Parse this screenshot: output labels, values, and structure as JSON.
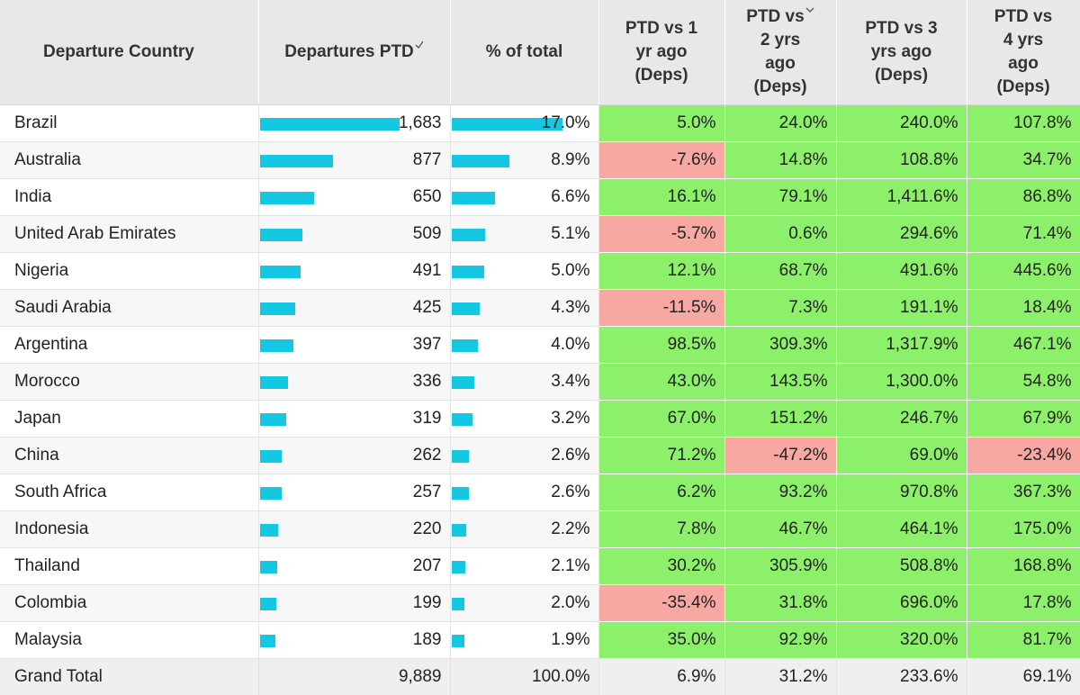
{
  "headers": {
    "country": "Departure Country",
    "departures": "Departures PTD",
    "pct_total": "% of total",
    "vs1": [
      "PTD vs 1",
      "yr ago",
      "(Deps)"
    ],
    "vs2": [
      "PTD vs",
      "2 yrs",
      "ago",
      "(Deps)"
    ],
    "vs3": [
      "PTD vs 3",
      "yrs ago",
      "(Deps)"
    ],
    "vs4": [
      "PTD vs",
      "4 yrs",
      "ago",
      "(Deps)"
    ]
  },
  "colors": {
    "bar": "#13c8e0",
    "positive": "#8df06a",
    "negative": "#f7a8a3",
    "header_bg": "#e8e8e8"
  },
  "icons": {
    "sort": "sort-chevron-icon"
  },
  "max_departures": 1683,
  "max_pct": 17.0,
  "rows": [
    {
      "country": "Brazil",
      "departures": "1,683",
      "dep_num": 1683,
      "pct": "17.0%",
      "pct_num": 17.0,
      "vs1": "5.0%",
      "vs2": "24.0%",
      "vs3": "240.0%",
      "vs4": "107.8%"
    },
    {
      "country": "Australia",
      "departures": "877",
      "dep_num": 877,
      "pct": "8.9%",
      "pct_num": 8.9,
      "vs1": "-7.6%",
      "vs2": "14.8%",
      "vs3": "108.8%",
      "vs4": "34.7%"
    },
    {
      "country": "India",
      "departures": "650",
      "dep_num": 650,
      "pct": "6.6%",
      "pct_num": 6.6,
      "vs1": "16.1%",
      "vs2": "79.1%",
      "vs3": "1,411.6%",
      "vs4": "86.8%"
    },
    {
      "country": "United Arab Emirates",
      "departures": "509",
      "dep_num": 509,
      "pct": "5.1%",
      "pct_num": 5.1,
      "vs1": "-5.7%",
      "vs2": "0.6%",
      "vs3": "294.6%",
      "vs4": "71.4%"
    },
    {
      "country": "Nigeria",
      "departures": "491",
      "dep_num": 491,
      "pct": "5.0%",
      "pct_num": 5.0,
      "vs1": "12.1%",
      "vs2": "68.7%",
      "vs3": "491.6%",
      "vs4": "445.6%"
    },
    {
      "country": "Saudi Arabia",
      "departures": "425",
      "dep_num": 425,
      "pct": "4.3%",
      "pct_num": 4.3,
      "vs1": "-11.5%",
      "vs2": "7.3%",
      "vs3": "191.1%",
      "vs4": "18.4%"
    },
    {
      "country": "Argentina",
      "departures": "397",
      "dep_num": 397,
      "pct": "4.0%",
      "pct_num": 4.0,
      "vs1": "98.5%",
      "vs2": "309.3%",
      "vs3": "1,317.9%",
      "vs4": "467.1%"
    },
    {
      "country": "Morocco",
      "departures": "336",
      "dep_num": 336,
      "pct": "3.4%",
      "pct_num": 3.4,
      "vs1": "43.0%",
      "vs2": "143.5%",
      "vs3": "1,300.0%",
      "vs4": "54.8%"
    },
    {
      "country": "Japan",
      "departures": "319",
      "dep_num": 319,
      "pct": "3.2%",
      "pct_num": 3.2,
      "vs1": "67.0%",
      "vs2": "151.2%",
      "vs3": "246.7%",
      "vs4": "67.9%"
    },
    {
      "country": "China",
      "departures": "262",
      "dep_num": 262,
      "pct": "2.6%",
      "pct_num": 2.6,
      "vs1": "71.2%",
      "vs2": "-47.2%",
      "vs3": "69.0%",
      "vs4": "-23.4%"
    },
    {
      "country": "South Africa",
      "departures": "257",
      "dep_num": 257,
      "pct": "2.6%",
      "pct_num": 2.6,
      "vs1": "6.2%",
      "vs2": "93.2%",
      "vs3": "970.8%",
      "vs4": "367.3%"
    },
    {
      "country": "Indonesia",
      "departures": "220",
      "dep_num": 220,
      "pct": "2.2%",
      "pct_num": 2.2,
      "vs1": "7.8%",
      "vs2": "46.7%",
      "vs3": "464.1%",
      "vs4": "175.0%"
    },
    {
      "country": "Thailand",
      "departures": "207",
      "dep_num": 207,
      "pct": "2.1%",
      "pct_num": 2.1,
      "vs1": "30.2%",
      "vs2": "305.9%",
      "vs3": "508.8%",
      "vs4": "168.8%"
    },
    {
      "country": "Colombia",
      "departures": "199",
      "dep_num": 199,
      "pct": "2.0%",
      "pct_num": 2.0,
      "vs1": "-35.4%",
      "vs2": "31.8%",
      "vs3": "696.0%",
      "vs4": "17.8%"
    },
    {
      "country": "Malaysia",
      "departures": "189",
      "dep_num": 189,
      "pct": "1.9%",
      "pct_num": 1.9,
      "vs1": "35.0%",
      "vs2": "92.9%",
      "vs3": "320.0%",
      "vs4": "81.7%"
    }
  ],
  "total": {
    "label": "Grand Total",
    "departures": "9,889",
    "pct": "100.0%",
    "vs1": "6.9%",
    "vs2": "31.2%",
    "vs3": "233.6%",
    "vs4": "69.1%"
  }
}
